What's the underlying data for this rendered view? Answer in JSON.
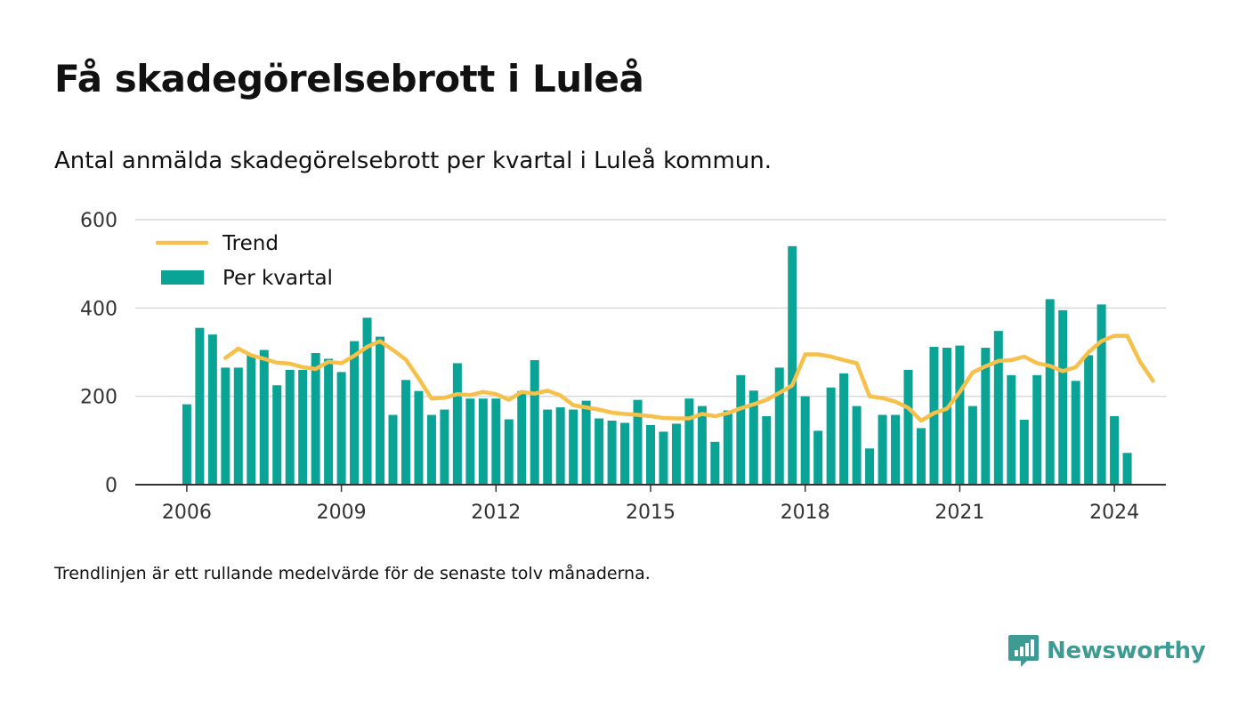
{
  "title": "Få skadegörelsebrott i Luleå",
  "subtitle": "Antal anmälda skadegörelsebrott per kvartal i Luleå kommun.",
  "note": "Trendlinjen är ett rullande medelvärde för de senaste tolv månaderna.",
  "brand": {
    "name": "Newsworthy",
    "icon": "newsworthy-logo-icon",
    "color": "#3e9b93"
  },
  "chart_data": {
    "type": "bar",
    "colors": {
      "bars": "#0aa497",
      "trend": "#f7c04a",
      "grid": "#d9d9d9",
      "axis": "#333333"
    },
    "ylim": [
      0,
      600
    ],
    "yticks": [
      0,
      200,
      400,
      600
    ],
    "xlim": [
      2005.0,
      2025.0
    ],
    "xticks": [
      2006,
      2009,
      2012,
      2015,
      2018,
      2021,
      2024
    ],
    "grid": true,
    "legend": {
      "placement": "top-left",
      "items": [
        {
          "label": "Trend",
          "kind": "line"
        },
        {
          "label": "Per kvartal",
          "kind": "bar"
        }
      ]
    },
    "quarterly": {
      "start": [
        2006,
        1
      ],
      "values": [
        182,
        355,
        340,
        265,
        265,
        295,
        305,
        225,
        260,
        260,
        298,
        285,
        255,
        325,
        378,
        335,
        158,
        237,
        212,
        158,
        170,
        275,
        195,
        195,
        195,
        148,
        212,
        282,
        170,
        175,
        170,
        190,
        150,
        145,
        140,
        192,
        135,
        120,
        138,
        195,
        178,
        97,
        168,
        248,
        213,
        155,
        265,
        540,
        200,
        122,
        220,
        252,
        178,
        82,
        158,
        158,
        260,
        128,
        312,
        310,
        315,
        178,
        310,
        348,
        248,
        147,
        248,
        420,
        395,
        235,
        293,
        408,
        155,
        72
      ]
    },
    "trend": {
      "start": [
        2006,
        4
      ],
      "values": [
        287,
        308,
        293,
        285,
        276,
        274,
        266,
        262,
        278,
        275,
        292,
        312,
        325,
        305,
        283,
        240,
        195,
        197,
        205,
        203,
        210,
        205,
        192,
        210,
        206,
        213,
        202,
        180,
        175,
        170,
        163,
        160,
        158,
        155,
        151,
        150,
        150,
        160,
        155,
        162,
        173,
        182,
        192,
        208,
        225,
        295,
        295,
        290,
        282,
        275,
        200,
        196,
        188,
        174,
        145,
        162,
        172,
        210,
        254,
        268,
        280,
        282,
        290,
        275,
        269,
        257,
        266,
        300,
        325,
        337,
        337,
        278,
        235
      ]
    }
  }
}
